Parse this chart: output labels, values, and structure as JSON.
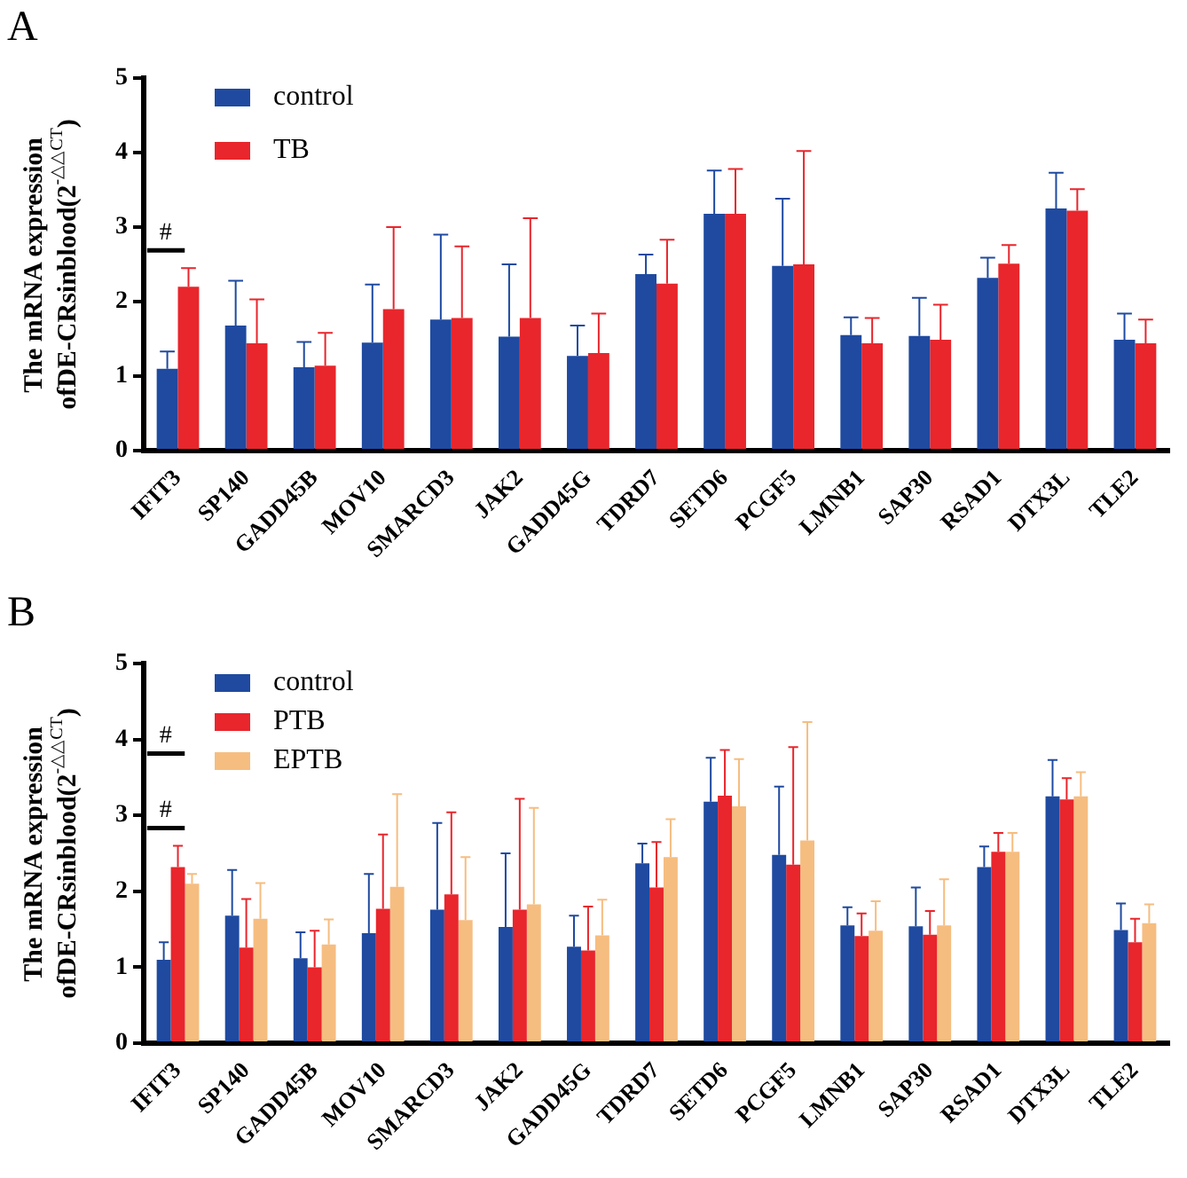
{
  "chart_data": [
    {
      "type": "bar",
      "title": "A",
      "ylabel": "The mRNA expression ofDE-CRsinblood(2$^{-△△CT}$)",
      "categories": [
        "IFIT3",
        "SP140",
        "GADD45B",
        "MOV10",
        "SMARCD3",
        "JAK2",
        "GADD45G",
        "TDRD7",
        "SETD6",
        "PCGF5",
        "LMNB1",
        "SAP30",
        "RSAD1",
        "DTX3L",
        "TLE2"
      ],
      "series": [
        {
          "name": "control",
          "color": "#1f4aa0",
          "values": [
            1.1,
            1.68,
            1.12,
            1.45,
            1.76,
            1.53,
            1.27,
            2.37,
            3.18,
            2.48,
            1.55,
            1.54,
            2.32,
            3.25,
            1.49
          ],
          "errors": [
            [
              1.1,
              1.33
            ],
            [
              1.68,
              2.28
            ],
            [
              1.12,
              1.46
            ],
            [
              1.45,
              2.23
            ],
            [
              1.76,
              2.9
            ],
            [
              1.53,
              2.5
            ],
            [
              1.27,
              1.68
            ],
            [
              2.37,
              2.63
            ],
            [
              3.18,
              3.76
            ],
            [
              2.48,
              3.38
            ],
            [
              1.55,
              1.79
            ],
            [
              1.54,
              2.05
            ],
            [
              2.32,
              2.59
            ],
            [
              3.25,
              3.73
            ],
            [
              1.49,
              1.84
            ]
          ]
        },
        {
          "name": "TB",
          "color": "#e8262c",
          "values": [
            2.2,
            1.44,
            1.14,
            1.9,
            1.78,
            1.78,
            1.31,
            2.24,
            3.18,
            2.5,
            1.44,
            1.49,
            2.51,
            3.22,
            1.44
          ],
          "errors": [
            [
              2.2,
              2.45
            ],
            [
              1.44,
              2.03
            ],
            [
              1.14,
              1.58
            ],
            [
              1.9,
              3.0
            ],
            [
              1.78,
              2.74
            ],
            [
              1.78,
              3.12
            ],
            [
              1.31,
              1.84
            ],
            [
              2.24,
              2.83
            ],
            [
              3.18,
              3.78
            ],
            [
              2.5,
              4.02
            ],
            [
              1.44,
              1.78
            ],
            [
              1.49,
              1.96
            ],
            [
              2.51,
              2.76
            ],
            [
              3.22,
              3.51
            ],
            [
              1.44,
              1.76
            ]
          ]
        }
      ],
      "ylim": [
        0,
        5
      ],
      "yticks": [
        0,
        1,
        2,
        3,
        4,
        5
      ],
      "grid": false,
      "legend": "top left",
      "annotations": [
        "#"
      ]
    },
    {
      "type": "bar",
      "title": "B",
      "ylabel": "The mRNA expression ofDE-CRsinblood(2$^{-△△CT}$)",
      "categories": [
        "IFIT3",
        "SP140",
        "GADD45B",
        "MOV10",
        "SMARCD3",
        "JAK2",
        "GADD45G",
        "TDRD7",
        "SETD6",
        "PCGF5",
        "LMNB1",
        "SAP30",
        "RSAD1",
        "DTX3L",
        "TLE2"
      ],
      "series": [
        {
          "name": "control",
          "color": "#1f4aa0",
          "values": [
            1.1,
            1.68,
            1.12,
            1.45,
            1.76,
            1.53,
            1.27,
            2.37,
            3.18,
            2.48,
            1.55,
            1.54,
            2.32,
            3.25,
            1.49
          ],
          "errors": [
            [
              1.1,
              1.33
            ],
            [
              1.68,
              2.28
            ],
            [
              1.12,
              1.46
            ],
            [
              1.45,
              2.23
            ],
            [
              1.76,
              2.9
            ],
            [
              1.53,
              2.5
            ],
            [
              1.27,
              1.68
            ],
            [
              2.37,
              2.63
            ],
            [
              3.18,
              3.76
            ],
            [
              2.48,
              3.38
            ],
            [
              1.55,
              1.79
            ],
            [
              1.54,
              2.05
            ],
            [
              2.32,
              2.59
            ],
            [
              3.25,
              3.73
            ],
            [
              1.49,
              1.84
            ]
          ]
        },
        {
          "name": "PTB",
          "color": "#e8262c",
          "values": [
            2.32,
            1.26,
            1.0,
            1.77,
            1.96,
            1.76,
            1.22,
            2.05,
            3.26,
            2.35,
            1.41,
            1.43,
            2.52,
            3.21,
            1.33
          ],
          "errors": [
            [
              2.32,
              2.6
            ],
            [
              1.26,
              1.9
            ],
            [
              1.0,
              1.48
            ],
            [
              1.77,
              2.75
            ],
            [
              1.96,
              3.04
            ],
            [
              1.76,
              3.22
            ],
            [
              1.22,
              1.8
            ],
            [
              2.05,
              2.65
            ],
            [
              3.26,
              3.86
            ],
            [
              2.35,
              3.9
            ],
            [
              1.41,
              1.71
            ],
            [
              1.43,
              1.74
            ],
            [
              2.52,
              2.77
            ],
            [
              3.21,
              3.49
            ],
            [
              1.33,
              1.64
            ]
          ]
        },
        {
          "name": "EPTB",
          "color": "#f6bd80",
          "values": [
            2.1,
            1.64,
            1.3,
            2.06,
            1.62,
            1.83,
            1.42,
            2.45,
            3.12,
            2.67,
            1.48,
            1.55,
            2.52,
            3.25,
            1.58
          ],
          "errors": [
            [
              2.1,
              2.23
            ],
            [
              1.64,
              2.11
            ],
            [
              1.3,
              1.63
            ],
            [
              2.06,
              3.28
            ],
            [
              1.62,
              2.45
            ],
            [
              1.83,
              3.1
            ],
            [
              1.42,
              1.89
            ],
            [
              2.45,
              2.95
            ],
            [
              3.12,
              3.74
            ],
            [
              2.67,
              4.23
            ],
            [
              1.48,
              1.87
            ],
            [
              1.55,
              2.16
            ],
            [
              2.52,
              2.77
            ],
            [
              3.25,
              3.57
            ],
            [
              1.58,
              1.83
            ]
          ]
        }
      ],
      "ylim": [
        0,
        5
      ],
      "yticks": [
        0,
        1,
        2,
        3,
        4,
        5
      ],
      "grid": false,
      "legend": "top left",
      "annotations": [
        "#",
        "#"
      ]
    }
  ]
}
